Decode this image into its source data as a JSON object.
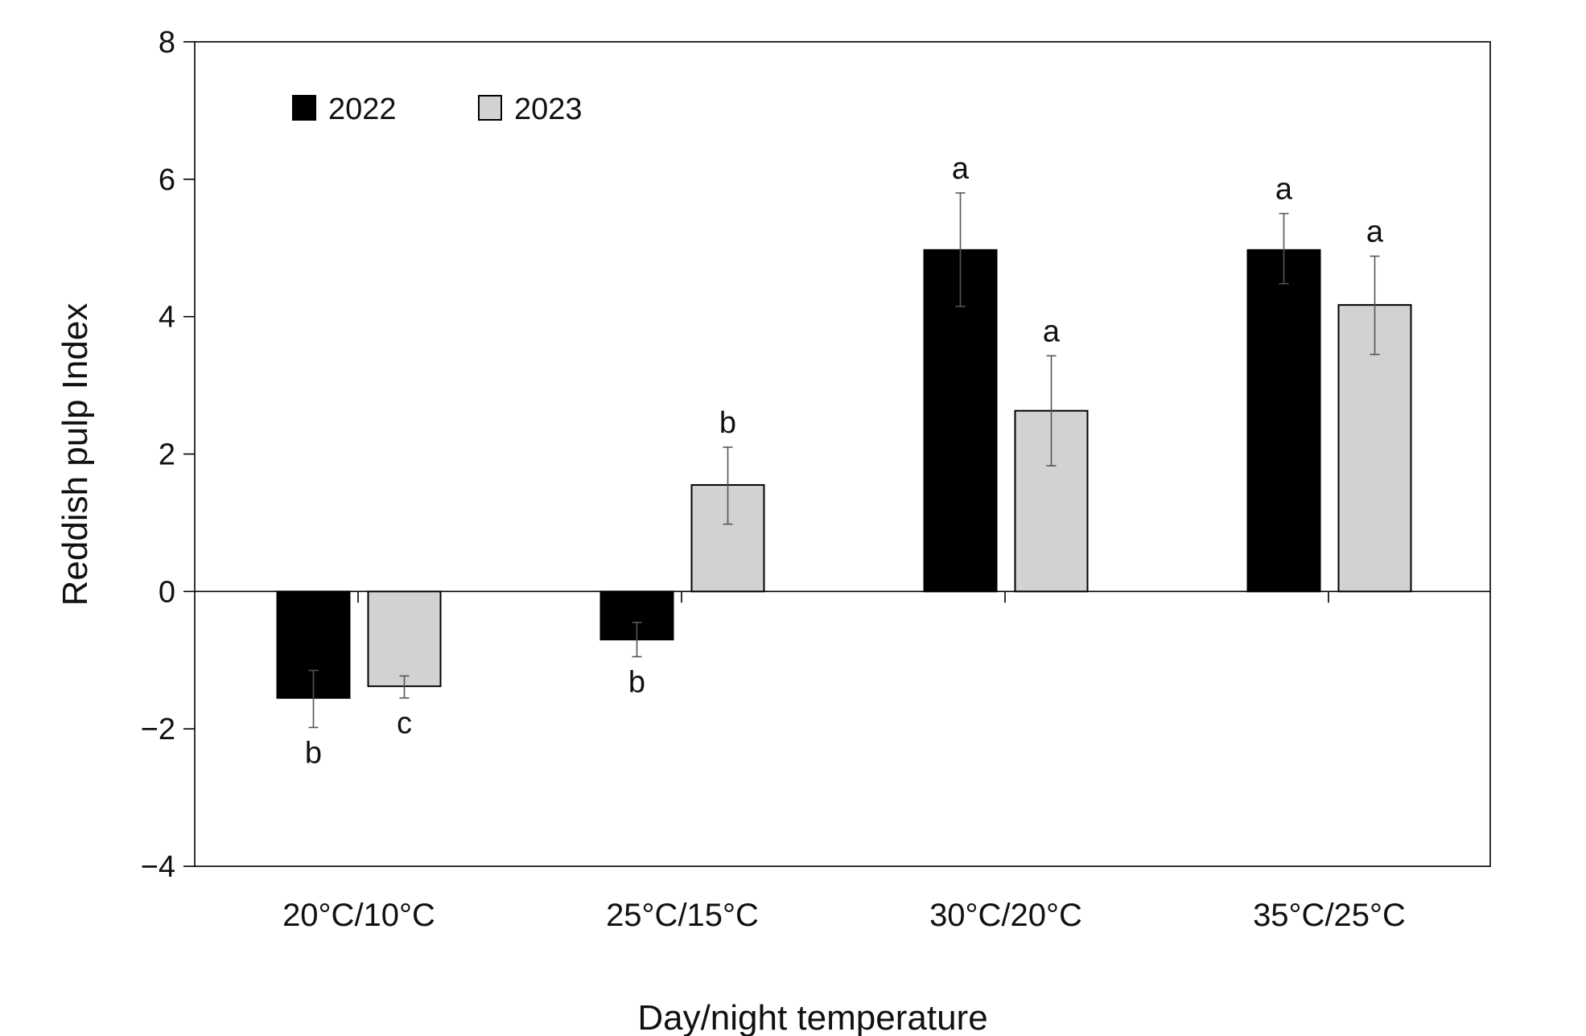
{
  "chart_data": {
    "type": "bar",
    "xlabel": "Day/night temperature",
    "ylabel": "Reddish pulp Index",
    "ylim": [
      -4,
      8
    ],
    "yticks": [
      8,
      6,
      4,
      2,
      0,
      -2,
      -4
    ],
    "ytick_labels": [
      "8",
      "6",
      "4",
      "2",
      "0",
      "−2",
      "−4"
    ],
    "categories": [
      "20°C/10°C",
      "25°C/15°C",
      "30°C/20°C",
      "35°C/25°C"
    ],
    "legend_position": "top-left",
    "grid": false,
    "series": [
      {
        "name": "2022",
        "color": "#000000",
        "values": [
          -1.55,
          -0.7,
          4.97,
          4.97
        ],
        "err_low": [
          -1.98,
          -0.95,
          4.15,
          4.48
        ],
        "err_high": [
          -1.15,
          -0.45,
          5.8,
          5.5
        ],
        "letters": [
          "b",
          "b",
          "a",
          "a"
        ]
      },
      {
        "name": "2023",
        "color": "#d3d2d2",
        "values": [
          -1.38,
          1.55,
          2.63,
          4.17
        ],
        "err_low": [
          -1.55,
          0.98,
          1.83,
          3.45
        ],
        "err_high": [
          -1.23,
          2.1,
          3.43,
          4.88
        ],
        "letters": [
          "c",
          "b",
          "a",
          "a"
        ]
      }
    ]
  }
}
